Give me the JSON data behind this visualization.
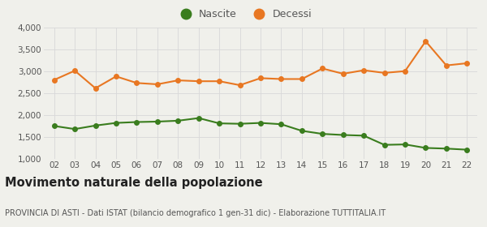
{
  "years": [
    2,
    3,
    4,
    5,
    6,
    7,
    8,
    9,
    10,
    11,
    12,
    13,
    14,
    15,
    16,
    17,
    18,
    19,
    20,
    21,
    22
  ],
  "nascite": [
    1750,
    1680,
    1760,
    1820,
    1840,
    1850,
    1870,
    1930,
    1810,
    1800,
    1820,
    1790,
    1640,
    1570,
    1545,
    1530,
    1320,
    1330,
    1250,
    1235,
    1210
  ],
  "decessi": [
    2800,
    3010,
    2610,
    2880,
    2730,
    2700,
    2790,
    2770,
    2770,
    2680,
    2840,
    2820,
    2820,
    3060,
    2940,
    3020,
    2960,
    3000,
    3680,
    3130,
    3180
  ],
  "nascite_color": "#3a7d1e",
  "decessi_color": "#e87722",
  "background_color": "#f0f0eb",
  "grid_color": "#d8d8d8",
  "title": "Movimento naturale della popolazione",
  "subtitle": "PROVINCIA DI ASTI - Dati ISTAT (bilancio demografico 1 gen-31 dic) - Elaborazione TUTTITALIA.IT",
  "legend_labels": [
    "Nascite",
    "Decessi"
  ],
  "ylim": [
    1000,
    4000
  ],
  "yticks": [
    1000,
    1500,
    2000,
    2500,
    3000,
    3500,
    4000
  ],
  "ytick_labels": [
    "1,000",
    "1,500",
    "2,000",
    "2,500",
    "3,000",
    "3,500",
    "4,000"
  ],
  "marker_size": 4,
  "line_width": 1.5,
  "title_fontsize": 10.5,
  "subtitle_fontsize": 7,
  "tick_fontsize": 7.5,
  "legend_fontsize": 9
}
